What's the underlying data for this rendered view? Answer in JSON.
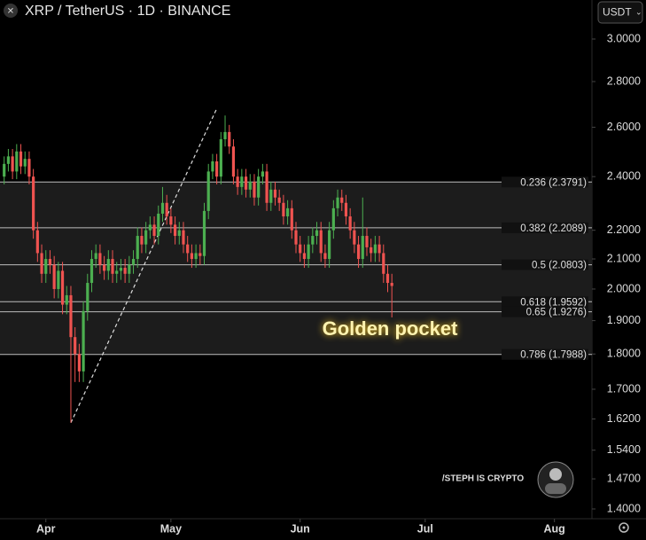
{
  "chart_data": {
    "type": "candlestick",
    "title": "XRP / TetherUS · 1D · BINANCE",
    "currency": "USDT",
    "log_scale": true,
    "up_color": "#4caf50",
    "down_color": "#ef5350",
    "ylim": [
      1.378,
      3.196
    ],
    "yticks": [
      {
        "value": 3.0,
        "label": "3.0000"
      },
      {
        "value": 2.8,
        "label": "2.8000"
      },
      {
        "value": 2.6,
        "label": "2.6000"
      },
      {
        "value": 2.4,
        "label": "2.4000"
      },
      {
        "value": 2.2,
        "label": "2.2000"
      },
      {
        "value": 2.1,
        "label": "2.1000"
      },
      {
        "value": 2.0,
        "label": "2.0000"
      },
      {
        "value": 1.9,
        "label": "1.9000"
      },
      {
        "value": 1.8,
        "label": "1.8000"
      },
      {
        "value": 1.7,
        "label": "1.7000"
      },
      {
        "value": 1.62,
        "label": "1.6200"
      },
      {
        "value": 1.54,
        "label": "1.5400"
      },
      {
        "value": 1.47,
        "label": "1.4700"
      },
      {
        "value": 1.4,
        "label": "1.4000"
      }
    ],
    "xlim": [
      -1,
      141
    ],
    "xticks": [
      {
        "value": 10,
        "label": "Apr"
      },
      {
        "value": 40,
        "label": "May"
      },
      {
        "value": 71,
        "label": "Jun"
      },
      {
        "value": 101,
        "label": "Jul"
      },
      {
        "value": 132,
        "label": "Aug"
      }
    ],
    "open": [
      2.4,
      2.45,
      2.48,
      2.42,
      2.5,
      2.44,
      2.47,
      2.4,
      2.2,
      2.12,
      2.05,
      2.1,
      2.08,
      2.0,
      2.06,
      1.95,
      1.98,
      1.85,
      1.8,
      1.75,
      1.93,
      2.02,
      2.1,
      2.12,
      2.08,
      2.06,
      2.1,
      2.05,
      2.06,
      2.07,
      2.05,
      2.08,
      2.1,
      2.18,
      2.15,
      2.2,
      2.22,
      2.18,
      2.26,
      2.3,
      2.25,
      2.22,
      2.18,
      2.2,
      2.15,
      2.12,
      2.1,
      2.12,
      2.11,
      2.27,
      2.42,
      2.46,
      2.4,
      2.55,
      2.58,
      2.52,
      2.4,
      2.36,
      2.4,
      2.35,
      2.38,
      2.32,
      2.4,
      2.42,
      2.3,
      2.35,
      2.32,
      2.3,
      2.25,
      2.28,
      2.2,
      2.15,
      2.12,
      2.1,
      2.15,
      2.18,
      2.2,
      2.12,
      2.1,
      2.2,
      2.28,
      2.32,
      2.3,
      2.25,
      2.2,
      2.15,
      2.1,
      2.18,
      2.14,
      2.12,
      2.15,
      2.12,
      2.05,
      2.02
    ],
    "high": [
      2.48,
      2.51,
      2.51,
      2.53,
      2.53,
      2.5,
      2.5,
      2.43,
      2.23,
      2.15,
      2.13,
      2.13,
      2.11,
      2.09,
      2.09,
      2.01,
      2.01,
      1.88,
      1.83,
      1.96,
      2.05,
      2.13,
      2.15,
      2.15,
      2.11,
      2.13,
      2.13,
      2.09,
      2.1,
      2.1,
      2.11,
      2.13,
      2.21,
      2.21,
      2.23,
      2.25,
      2.25,
      2.29,
      2.36,
      2.33,
      2.28,
      2.25,
      2.23,
      2.23,
      2.18,
      2.15,
      2.15,
      2.15,
      2.3,
      2.45,
      2.49,
      2.49,
      2.58,
      2.65,
      2.61,
      2.55,
      2.43,
      2.43,
      2.43,
      2.41,
      2.41,
      2.43,
      2.45,
      2.45,
      2.38,
      2.38,
      2.35,
      2.33,
      2.31,
      2.31,
      2.23,
      2.18,
      2.15,
      2.18,
      2.21,
      2.23,
      2.23,
      2.15,
      2.23,
      2.31,
      2.35,
      2.35,
      2.33,
      2.28,
      2.23,
      2.18,
      2.32,
      2.21,
      2.17,
      2.18,
      2.18,
      2.15,
      2.08,
      2.05
    ],
    "low": [
      2.37,
      2.42,
      2.39,
      2.39,
      2.41,
      2.41,
      2.37,
      2.17,
      2.09,
      2.02,
      2.02,
      2.05,
      1.97,
      1.97,
      1.92,
      1.92,
      1.61,
      1.72,
      1.72,
      1.72,
      1.9,
      1.99,
      2.07,
      2.05,
      2.03,
      2.03,
      2.02,
      2.02,
      2.03,
      2.02,
      2.02,
      2.05,
      2.07,
      2.12,
      2.12,
      2.17,
      2.15,
      2.15,
      2.23,
      2.22,
      2.19,
      2.15,
      2.15,
      2.12,
      2.09,
      2.07,
      2.07,
      2.08,
      2.08,
      2.24,
      2.39,
      2.37,
      2.37,
      2.52,
      2.49,
      2.37,
      2.33,
      2.33,
      2.32,
      2.32,
      2.29,
      2.29,
      2.37,
      2.27,
      2.27,
      2.29,
      2.27,
      2.22,
      2.22,
      2.17,
      2.12,
      2.09,
      2.07,
      2.07,
      2.12,
      2.15,
      2.09,
      2.07,
      2.07,
      2.17,
      2.25,
      2.27,
      2.22,
      2.17,
      2.12,
      2.07,
      2.07,
      2.11,
      2.09,
      2.09,
      2.09,
      2.02,
      1.99,
      1.91
    ],
    "close": [
      2.45,
      2.48,
      2.42,
      2.5,
      2.44,
      2.47,
      2.4,
      2.2,
      2.12,
      2.05,
      2.1,
      2.08,
      2.0,
      2.06,
      1.95,
      1.98,
      1.85,
      1.8,
      1.75,
      1.93,
      2.02,
      2.1,
      2.12,
      2.08,
      2.06,
      2.1,
      2.05,
      2.06,
      2.07,
      2.05,
      2.08,
      2.1,
      2.18,
      2.15,
      2.2,
      2.22,
      2.18,
      2.26,
      2.3,
      2.25,
      2.22,
      2.18,
      2.2,
      2.15,
      2.12,
      2.1,
      2.12,
      2.11,
      2.27,
      2.42,
      2.46,
      2.4,
      2.55,
      2.58,
      2.52,
      2.4,
      2.36,
      2.4,
      2.35,
      2.38,
      2.32,
      2.4,
      2.42,
      2.3,
      2.35,
      2.32,
      2.3,
      2.25,
      2.28,
      2.2,
      2.15,
      2.12,
      2.1,
      2.15,
      2.18,
      2.2,
      2.12,
      2.1,
      2.2,
      2.28,
      2.32,
      2.3,
      2.25,
      2.2,
      2.15,
      2.1,
      2.18,
      2.14,
      2.12,
      2.15,
      2.12,
      2.05,
      2.02,
      2.01
    ],
    "fib_levels": [
      {
        "value": 2.3791,
        "label": "0.236 (2.3791)"
      },
      {
        "value": 2.2089,
        "label": "0.382 (2.2089)"
      },
      {
        "value": 2.0803,
        "label": "0.5 (2.0803)"
      },
      {
        "value": 1.9592,
        "label": "0.618 (1.9592)"
      },
      {
        "value": 1.9276,
        "label": "0.65 (1.9276)"
      },
      {
        "value": 1.7988,
        "label": "0.786 (1.7988)"
      }
    ],
    "trendline": {
      "x": [
        16,
        51
      ],
      "y": [
        1.61,
        2.68
      ]
    },
    "annotation": "Golden pocket",
    "watermark": "/STEPH IS CRYPTO"
  }
}
